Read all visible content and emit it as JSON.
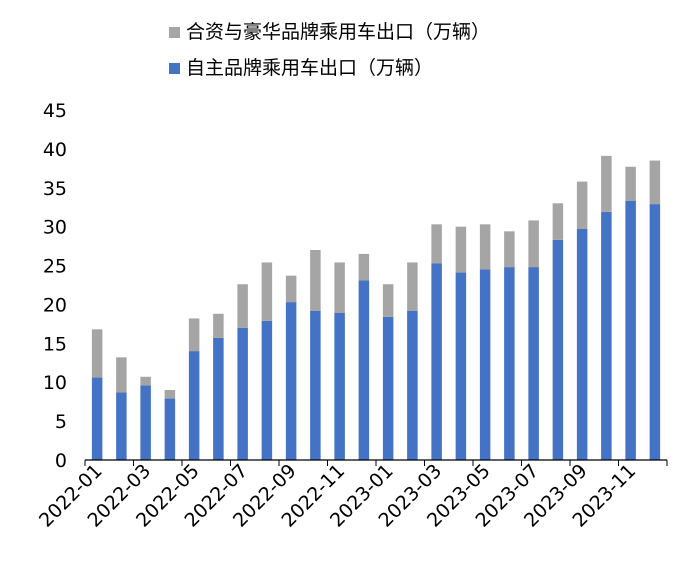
{
  "chart_data": {
    "type": "bar",
    "stacked": true,
    "title": "",
    "xlabel": "",
    "ylabel": "",
    "ylim": [
      0,
      45
    ],
    "yticks": [
      0,
      5,
      10,
      15,
      20,
      25,
      30,
      35,
      40,
      45
    ],
    "grid": false,
    "legend_position": "top-center",
    "categories": [
      "2022-01",
      "2022-02",
      "2022-03",
      "2022-04",
      "2022-05",
      "2022-06",
      "2022-07",
      "2022-08",
      "2022-09",
      "2022-10",
      "2022-11",
      "2022-12",
      "2023-01",
      "2023-02",
      "2023-03",
      "2023-04",
      "2023-05",
      "2023-06",
      "2023-07",
      "2023-08",
      "2023-09",
      "2023-10",
      "2023-11",
      "2023-12"
    ],
    "x_tick_labels": [
      "2022-01",
      "2022-03",
      "2022-05",
      "2022-07",
      "2022-09",
      "2022-11",
      "2023-01",
      "2023-03",
      "2023-05",
      "2023-07",
      "2023-09",
      "2023-11"
    ],
    "series": [
      {
        "name": "自主品牌乘用车出口（万辆）",
        "color": "#4472C4",
        "values": [
          10.6,
          8.7,
          9.6,
          7.9,
          14.0,
          15.7,
          17.0,
          17.9,
          20.3,
          19.2,
          18.9,
          23.1,
          18.4,
          19.2,
          25.3,
          24.1,
          24.5,
          24.8,
          24.8,
          28.3,
          29.7,
          31.9,
          33.3,
          32.9
        ]
      },
      {
        "name": "合资与豪华品牌乘用车出口（万辆）",
        "color": "#A5A5A5",
        "values": [
          6.2,
          4.5,
          1.1,
          1.1,
          4.2,
          3.1,
          5.6,
          7.5,
          3.4,
          7.8,
          6.5,
          3.4,
          4.2,
          6.2,
          5.0,
          5.9,
          5.8,
          4.6,
          6.0,
          4.7,
          6.1,
          7.2,
          4.4,
          5.6
        ]
      }
    ]
  }
}
